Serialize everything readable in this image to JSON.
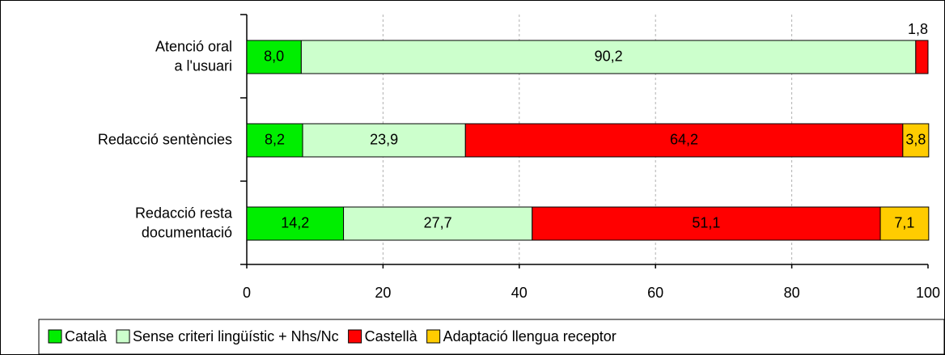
{
  "chart_data": {
    "type": "stacked_barh",
    "categories": [
      "Atenció oral a l'usuari",
      "Redacció sentències",
      "Redacció resta documentació"
    ],
    "series": [
      {
        "name": "Català",
        "color": "#00ee00",
        "values": [
          8.0,
          8.2,
          14.2
        ],
        "value_labels": [
          "8,0",
          "8,2",
          "14,2"
        ]
      },
      {
        "name": "Sense criteri lingüístic + Nhs/Nc",
        "color": "#ccffcc",
        "values": [
          90.2,
          23.9,
          27.7
        ],
        "value_labels": [
          "90,2",
          "23,9",
          "27,7"
        ]
      },
      {
        "name": "Castellà",
        "color": "#ff0000",
        "values": [
          1.8,
          64.2,
          51.1
        ],
        "value_labels": [
          "1,8",
          "64,2",
          "51,1"
        ]
      },
      {
        "name": "Adaptació llengua receptor",
        "color": "#ffcc00",
        "values": [
          null,
          3.8,
          7.1
        ],
        "value_labels": [
          null,
          "3,8",
          "7,1"
        ]
      }
    ],
    "xlim": [
      0,
      100
    ],
    "xticks": [
      0,
      20,
      40,
      60,
      80,
      100
    ],
    "grid": true,
    "legend": "bottom"
  }
}
